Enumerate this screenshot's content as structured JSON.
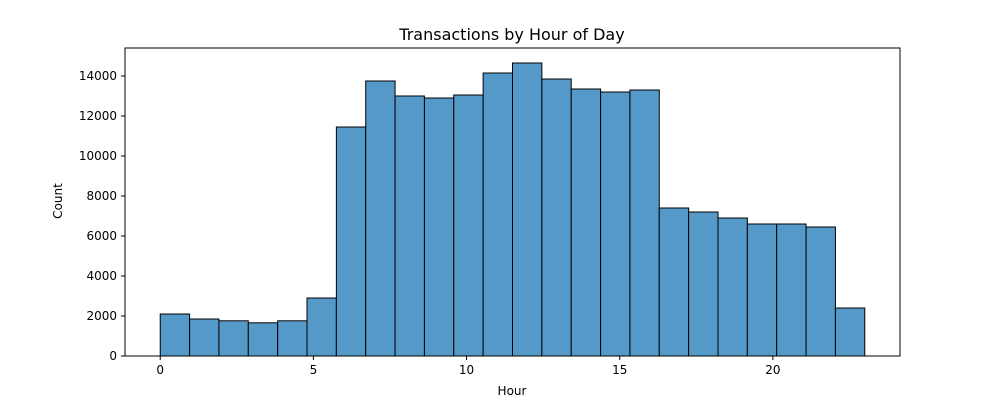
{
  "chart_data": {
    "type": "bar",
    "title": "Transactions by Hour of Day",
    "xlabel": "Hour",
    "ylabel": "Count",
    "bin_start": 0,
    "bin_end": 23,
    "bin_count": 24,
    "values": [
      2100,
      1850,
      1760,
      1660,
      1760,
      2900,
      11450,
      13750,
      13000,
      12900,
      13050,
      14150,
      14650,
      13850,
      13350,
      13200,
      13300,
      7400,
      7200,
      6900,
      6600,
      6600,
      6450,
      2400
    ],
    "xlim": [
      -1.15,
      24.15
    ],
    "ylim": [
      0,
      15400
    ],
    "x_ticks": [
      0,
      5,
      10,
      15,
      20
    ],
    "y_ticks": [
      0,
      2000,
      4000,
      6000,
      8000,
      10000,
      12000,
      14000
    ],
    "bar_color": "#5599c8",
    "edge_color": "#000000",
    "grid": false
  }
}
